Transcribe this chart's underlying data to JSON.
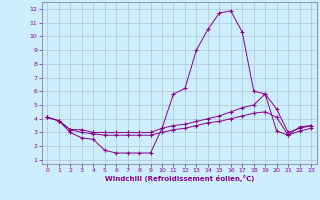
{
  "xlabel": "Windchill (Refroidissement éolien,°C)",
  "bg_color": "#cceeff",
  "line_color": "#880088",
  "xlim": [
    -0.5,
    23.5
  ],
  "ylim": [
    0.7,
    12.5
  ],
  "xticks": [
    0,
    1,
    2,
    3,
    4,
    5,
    6,
    7,
    8,
    9,
    10,
    11,
    12,
    13,
    14,
    15,
    16,
    17,
    18,
    19,
    20,
    21,
    22,
    23
  ],
  "yticks": [
    1,
    2,
    3,
    4,
    5,
    6,
    7,
    8,
    9,
    10,
    11,
    12
  ],
  "lines": [
    {
      "x": [
        0,
        1,
        2,
        3,
        4,
        5,
        6,
        7,
        8,
        9,
        10,
        11,
        12,
        13,
        14,
        15,
        16,
        17,
        18,
        19,
        20,
        21,
        22,
        23
      ],
      "y": [
        4.1,
        3.85,
        3.0,
        2.6,
        2.5,
        1.7,
        1.5,
        1.5,
        1.5,
        1.5,
        3.3,
        5.8,
        6.2,
        9.0,
        10.5,
        11.7,
        11.85,
        10.3,
        6.0,
        5.8,
        3.1,
        2.8,
        3.4,
        3.5
      ]
    },
    {
      "x": [
        0,
        1,
        2,
        3,
        4,
        5,
        6,
        7,
        8,
        9,
        10,
        11,
        12,
        13,
        14,
        15,
        16,
        17,
        18,
        19,
        20,
        21,
        22,
        23
      ],
      "y": [
        4.1,
        3.85,
        3.2,
        3.2,
        3.0,
        3.0,
        3.0,
        3.0,
        3.0,
        3.0,
        3.3,
        3.5,
        3.6,
        3.8,
        4.0,
        4.2,
        4.5,
        4.8,
        5.0,
        5.8,
        4.7,
        3.0,
        3.3,
        3.5
      ]
    },
    {
      "x": [
        0,
        1,
        2,
        3,
        4,
        5,
        6,
        7,
        8,
        9,
        10,
        11,
        12,
        13,
        14,
        15,
        16,
        17,
        18,
        19,
        20,
        21,
        22,
        23
      ],
      "y": [
        4.1,
        3.85,
        3.2,
        3.0,
        2.9,
        2.8,
        2.8,
        2.8,
        2.8,
        2.8,
        3.0,
        3.2,
        3.3,
        3.5,
        3.7,
        3.8,
        4.0,
        4.2,
        4.4,
        4.5,
        4.1,
        2.8,
        3.1,
        3.3
      ]
    }
  ]
}
